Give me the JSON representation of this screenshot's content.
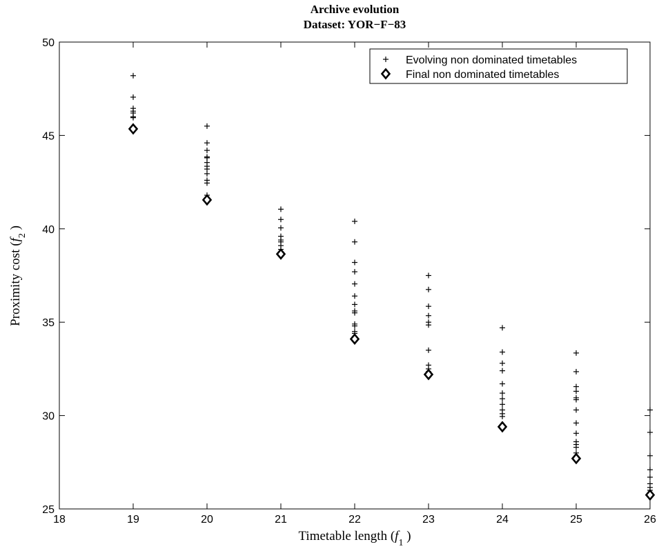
{
  "chart_data": {
    "type": "scatter",
    "title": "Archive evolution",
    "subtitle": "Dataset:  YOR−F−83",
    "xlabel": {
      "text": "Timetable length (",
      "var": "f",
      "sub": "1",
      "close": " )"
    },
    "ylabel": {
      "text": "Proximity cost (",
      "var": "f",
      "sub": "2",
      "close": " )"
    },
    "xlim": [
      18,
      26
    ],
    "ylim": [
      25,
      50
    ],
    "xticks": [
      "18",
      "19",
      "20",
      "21",
      "22",
      "23",
      "24",
      "25",
      "26"
    ],
    "yticks": [
      "25",
      "30",
      "35",
      "40",
      "45",
      "50"
    ],
    "grid": false,
    "legend_position": "top-right",
    "series": [
      {
        "name": "Evolving non dominated timetables",
        "marker": "plus",
        "points": [
          [
            19,
            48.2
          ],
          [
            19,
            47.05
          ],
          [
            19,
            46.45
          ],
          [
            19,
            46.3
          ],
          [
            19,
            46.2
          ],
          [
            19,
            46.0
          ],
          [
            19,
            45.95
          ],
          [
            20,
            45.5
          ],
          [
            20,
            44.6
          ],
          [
            20,
            44.2
          ],
          [
            20,
            43.85
          ],
          [
            20,
            43.8
          ],
          [
            20,
            43.55
          ],
          [
            20,
            43.35
          ],
          [
            20,
            43.2
          ],
          [
            20,
            42.95
          ],
          [
            20,
            42.6
          ],
          [
            20,
            42.45
          ],
          [
            20,
            41.8
          ],
          [
            21,
            41.05
          ],
          [
            21,
            40.5
          ],
          [
            21,
            40.05
          ],
          [
            21,
            39.6
          ],
          [
            21,
            39.4
          ],
          [
            21,
            39.3
          ],
          [
            21,
            39.1
          ],
          [
            21,
            38.9
          ],
          [
            22,
            40.4
          ],
          [
            22,
            39.3
          ],
          [
            22,
            38.2
          ],
          [
            22,
            37.7
          ],
          [
            22,
            37.05
          ],
          [
            22,
            36.4
          ],
          [
            22,
            35.95
          ],
          [
            22,
            35.6
          ],
          [
            22,
            35.5
          ],
          [
            22,
            34.9
          ],
          [
            22,
            34.8
          ],
          [
            22,
            34.5
          ],
          [
            22,
            34.4
          ],
          [
            23,
            37.5
          ],
          [
            23,
            36.75
          ],
          [
            23,
            35.85
          ],
          [
            23,
            35.35
          ],
          [
            23,
            35.0
          ],
          [
            23,
            34.85
          ],
          [
            23,
            33.5
          ],
          [
            23,
            32.7
          ],
          [
            23,
            32.5
          ],
          [
            23,
            32.35
          ],
          [
            24,
            34.7
          ],
          [
            24,
            33.4
          ],
          [
            24,
            32.8
          ],
          [
            24,
            32.4
          ],
          [
            24,
            31.7
          ],
          [
            24,
            31.2
          ],
          [
            24,
            30.9
          ],
          [
            24,
            30.6
          ],
          [
            24,
            30.3
          ],
          [
            24,
            30.1
          ],
          [
            24,
            29.95
          ],
          [
            25,
            33.35
          ],
          [
            25,
            32.35
          ],
          [
            25,
            31.55
          ],
          [
            25,
            31.3
          ],
          [
            25,
            30.95
          ],
          [
            25,
            30.85
          ],
          [
            25,
            30.3
          ],
          [
            25,
            29.6
          ],
          [
            25,
            29.05
          ],
          [
            25,
            28.6
          ],
          [
            25,
            28.45
          ],
          [
            25,
            28.3
          ],
          [
            25,
            28.0
          ],
          [
            26,
            30.3
          ],
          [
            26,
            29.1
          ],
          [
            26,
            27.85
          ],
          [
            26,
            27.1
          ],
          [
            26,
            26.7
          ],
          [
            26,
            26.35
          ],
          [
            26,
            26.15
          ],
          [
            26,
            26.0
          ]
        ]
      },
      {
        "name": "Final non dominated timetables",
        "marker": "diamond",
        "points": [
          [
            19,
            45.35
          ],
          [
            20,
            41.55
          ],
          [
            21,
            38.65
          ],
          [
            22,
            34.1
          ],
          [
            23,
            32.2
          ],
          [
            24,
            29.4
          ],
          [
            25,
            27.7
          ],
          [
            26,
            25.75
          ]
        ]
      }
    ]
  }
}
